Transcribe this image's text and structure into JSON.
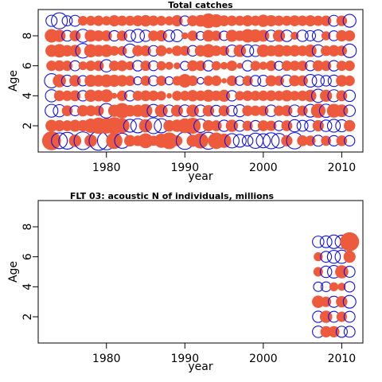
{
  "colors": {
    "positive": "#ee5a3c",
    "negative": "#1010ee",
    "frame": "#000000"
  },
  "chart_data": [
    {
      "type": "scatter",
      "encoding": "bubble: filled circles = positive residual, open circles = negative residual; area ~ |value|",
      "title": "Total catches",
      "xlabel": "year",
      "ylabel": "Age",
      "xlim": [
        1971.3,
        2012.7
      ],
      "ylim": [
        0.25,
        9.75
      ],
      "xticks": [
        1980,
        1990,
        2000,
        2010
      ],
      "yticks": [
        2,
        4,
        6,
        8
      ],
      "legend": "none",
      "grid": false,
      "years": [
        1973,
        1974,
        1975,
        1976,
        1977,
        1978,
        1979,
        1980,
        1981,
        1982,
        1983,
        1984,
        1985,
        1986,
        1987,
        1988,
        1989,
        1990,
        1991,
        1992,
        1993,
        1994,
        1995,
        1996,
        1997,
        1998,
        1999,
        2000,
        2001,
        2002,
        2003,
        2004,
        2005,
        2006,
        2007,
        2008,
        2009,
        2010,
        2011
      ],
      "ages": [
        1,
        2,
        3,
        4,
        5,
        6,
        7,
        8,
        9
      ],
      "values": [
        [
          0.98,
          -0.69,
          -0.77,
          0.42,
          -0.86,
          0.43,
          -0.99,
          -0.88,
          0.73,
          -0.62,
          0.37,
          0.31,
          0.61,
          0.28,
          0.55,
          0.77,
          0.32,
          -0.81,
          0.41,
          0.66,
          -0.79,
          0.74,
          0.56,
          -0.56,
          -0.45,
          -0.31,
          -0.63,
          -0.54,
          -0.7,
          -0.59,
          0.35,
          -0.73,
          0.33,
          0.3,
          -0.33,
          0.28,
          -0.3,
          0.32,
          -0.3
        ],
        [
          0.4,
          0.35,
          0.33,
          0.39,
          0.36,
          0.56,
          0.73,
          0.67,
          0.81,
          0.61,
          -0.45,
          -0.55,
          0.48,
          -0.68,
          -0.55,
          0.37,
          0.42,
          0.6,
          0.7,
          -0.49,
          0.35,
          0.33,
          -0.35,
          0.41,
          -0.33,
          0.29,
          -0.3,
          0.33,
          0.3,
          -0.26,
          0.33,
          -0.41,
          -0.33,
          -0.36,
          0.35,
          -0.36,
          -0.45,
          -0.4,
          0.36
        ],
        [
          -0.45,
          -0.41,
          0.32,
          -0.28,
          0.36,
          0.33,
          0.3,
          -0.58,
          0.41,
          0.65,
          0.37,
          0.41,
          0.49,
          -0.44,
          0.45,
          -0.37,
          0.39,
          -0.38,
          0.42,
          -0.36,
          0.36,
          -0.33,
          0.33,
          -0.31,
          -0.4,
          0.32,
          0.3,
          0.3,
          -0.36,
          0.3,
          0.34,
          -0.37,
          0.3,
          -0.44,
          0.58,
          -0.48,
          0.53,
          0.44,
          -0.36
        ],
        [
          -0.41,
          0.32,
          0.3,
          0.33,
          -0.3,
          0.41,
          0.36,
          0.46,
          0.09,
          0.3,
          -0.3,
          0.28,
          0.32,
          0.3,
          0.25,
          0.08,
          0.27,
          0.28,
          0.36,
          0.3,
          0.4,
          0.3,
          0.4,
          -0.3,
          0.25,
          0.3,
          0.28,
          0.3,
          0.32,
          0.28,
          0.36,
          0.27,
          0.3,
          0.4,
          -0.48,
          0.4,
          -0.4,
          0.33,
          -0.36
        ],
        [
          -0.55,
          0.48,
          -0.35,
          0.36,
          -0.29,
          0.41,
          0.38,
          0.45,
          0.4,
          0.36,
          0.3,
          -0.18,
          0.28,
          -0.28,
          0.28,
          -0.18,
          0.25,
          0.5,
          0.3,
          -0.12,
          0.28,
          0.3,
          0.08,
          0.3,
          -0.23,
          0.29,
          -0.31,
          -0.33,
          0.34,
          0.28,
          -0.37,
          0.34,
          0.32,
          -0.44,
          -0.4,
          -0.3,
          -0.36,
          0.36,
          0.3
        ],
        [
          0.3,
          0.33,
          0.3,
          -0.28,
          0.21,
          0.3,
          0.3,
          -0.41,
          0.3,
          0.32,
          0.22,
          -0.3,
          0.3,
          -0.26,
          0.24,
          0.18,
          0.13,
          -0.22,
          0.33,
          0.3,
          -0.3,
          0.24,
          0.16,
          0.3,
          0.1,
          -0.3,
          0.27,
          0.19,
          0.3,
          -0.22,
          0.3,
          0.28,
          0.29,
          -0.27,
          0.33,
          0.3,
          -0.3,
          0.29,
          0.3
        ],
        [
          0.41,
          0.5,
          0.36,
          0.38,
          -0.58,
          0.48,
          0.39,
          0.43,
          0.26,
          0.25,
          -0.5,
          0.33,
          0.32,
          -0.3,
          0.33,
          0.12,
          0.3,
          0.28,
          -0.31,
          0.36,
          0.5,
          0.31,
          0.28,
          -0.37,
          0.42,
          -0.4,
          -0.36,
          0.44,
          0.33,
          0.41,
          0.34,
          0.36,
          0.31,
          0.42,
          -0.39,
          0.3,
          0.36,
          0.3,
          -0.5
        ],
        [
          0.5,
          0.42,
          -0.32,
          0.33,
          -0.47,
          0.4,
          0.34,
          0.33,
          -0.3,
          0.3,
          -0.35,
          -0.48,
          -0.35,
          0.31,
          0.35,
          -0.36,
          -0.39,
          0.13,
          0.3,
          -0.2,
          0.38,
          0.3,
          -0.24,
          0.4,
          0.3,
          0.5,
          0.46,
          0.39,
          -0.35,
          0.4,
          -0.36,
          0.18,
          -0.35,
          -0.29,
          -0.38,
          0.23,
          -0.27,
          0.35,
          0.33
        ],
        [
          -0.34,
          -0.7,
          -0.28,
          -0.33,
          0.26,
          0.27,
          0.3,
          0.24,
          0.35,
          0.29,
          0.28,
          0.33,
          0.37,
          0.3,
          0.27,
          0.23,
          0.35,
          -0.27,
          0.33,
          0.38,
          0.6,
          0.48,
          0.33,
          0.3,
          0.28,
          0.34,
          0.29,
          0.42,
          0.35,
          0.3,
          0.28,
          0.33,
          0.3,
          0.34,
          0.29,
          0.31,
          -0.33,
          0.31,
          -0.45
        ]
      ]
    },
    {
      "type": "scatter",
      "encoding": "bubble: filled circles = positive residual, open circles = negative residual; area ~ |value|",
      "title": "FLT 03:   acoustic   N of individuals, millions",
      "xlabel": "year",
      "ylabel": "Age",
      "xlim": [
        1971.3,
        2012.7
      ],
      "ylim": [
        0.25,
        9.75
      ],
      "xticks": [
        1980,
        1990,
        2000,
        2010
      ],
      "yticks": [
        2,
        4,
        6,
        8
      ],
      "legend": "none",
      "grid": false,
      "years": [
        2007,
        2008,
        2009,
        2010,
        2011
      ],
      "ages": [
        1,
        2,
        3,
        4,
        5,
        6,
        7
      ],
      "values": [
        [
          -0.36,
          0.35,
          0.35,
          -0.34,
          -0.33
        ],
        [
          -0.35,
          0.42,
          -0.33,
          0.3,
          -0.33
        ],
        [
          0.42,
          0.3,
          -0.34,
          0.36,
          -0.44
        ],
        [
          -0.24,
          -0.26,
          0.22,
          0.18,
          -0.3
        ],
        [
          0.25,
          -0.36,
          -0.44,
          0.48,
          -0.33
        ],
        [
          0.22,
          -0.33,
          -0.46,
          -0.48,
          0.4
        ],
        [
          -0.36,
          -0.38,
          -0.5,
          -0.47,
          1.0
        ]
      ]
    }
  ]
}
